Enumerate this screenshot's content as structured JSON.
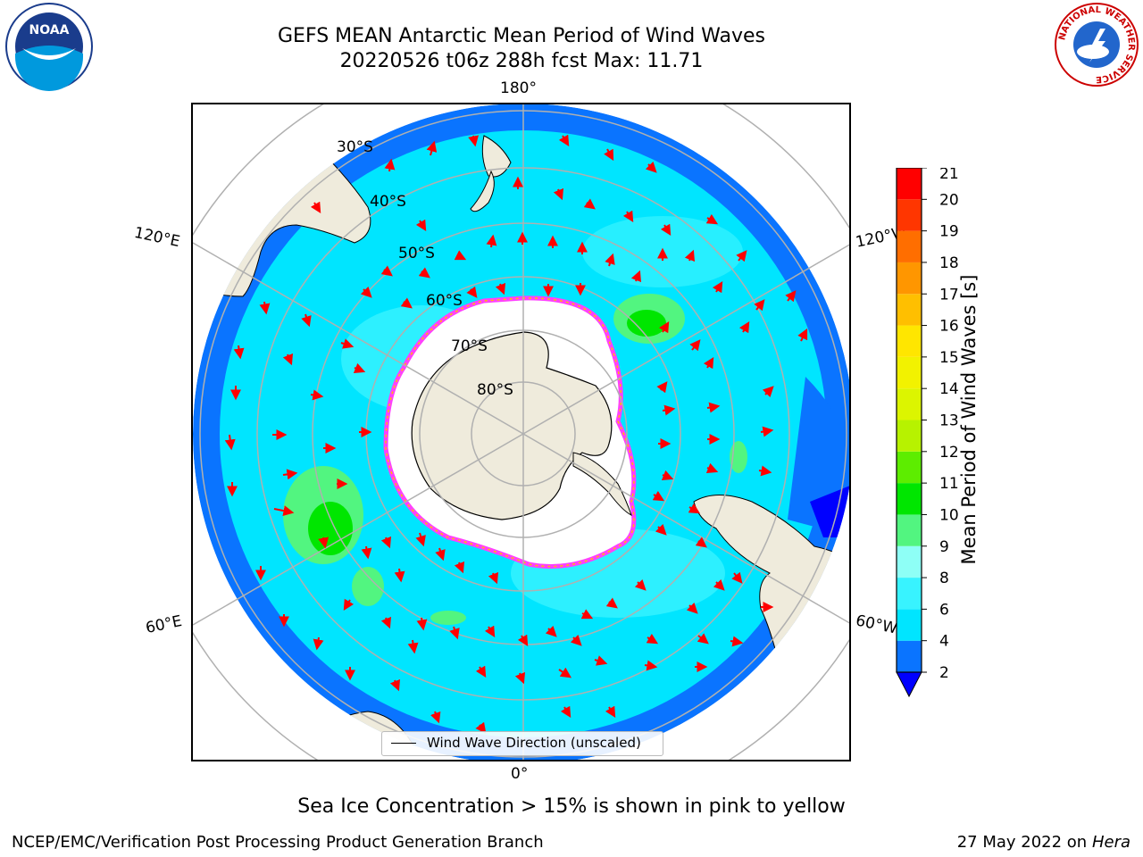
{
  "title_line1": "GEFS MEAN Antarctic Mean Period of Wind Waves",
  "title_line2": "20220526 t06z 288h fcst   Max: 11.71",
  "meridian_labels": {
    "top": "180°",
    "bottom": "0°",
    "left_upper": "120°E",
    "left_lower": "60°E",
    "right_upper": "120°W",
    "right_lower": "60°W"
  },
  "latitude_labels": [
    "30°S",
    "40°S",
    "50°S",
    "60°S",
    "70°S",
    "80°S"
  ],
  "legend_label": "Wind Wave Direction (unscaled)",
  "colorbar": {
    "label": "Mean Period of Wind Waves [s]",
    "ticks": [
      "2",
      "4",
      "6",
      "8",
      "9",
      "10",
      "11",
      "12",
      "13",
      "14",
      "15",
      "16",
      "17",
      "18",
      "19",
      "20",
      "21"
    ],
    "colors": [
      "#0a74ff",
      "#00e5ff",
      "#38f3ff",
      "#8efff6",
      "#52f580",
      "#00e600",
      "#5ded00",
      "#b7f200",
      "#dcf500",
      "#f2f200",
      "#ffe600",
      "#ffbf00",
      "#ff9600",
      "#ff6e00",
      "#ff3600",
      "#ff0000"
    ],
    "under_color": "#0000ff",
    "unit": "s"
  },
  "colors": {
    "land": "#efebdc",
    "ocean_base": "#00e5ff",
    "ocean_deep": "#0a74ff",
    "sea_ice": "#ffffff",
    "ice_edge": "#ff40ff",
    "arrow": "#ff0000",
    "grid": "#b0b0b0"
  },
  "sea_ice_note": "Sea Ice Concentration > 15% is shown in pink to yellow",
  "footer_left": "NCEP/EMC/Verification Post Processing Product Generation Branch",
  "footer_date": "27 May 2022 on",
  "footer_machine": "Hera",
  "logos": {
    "noaa": "NOAA",
    "nws_ring": "NATIONAL WEATHER SERVICE"
  }
}
